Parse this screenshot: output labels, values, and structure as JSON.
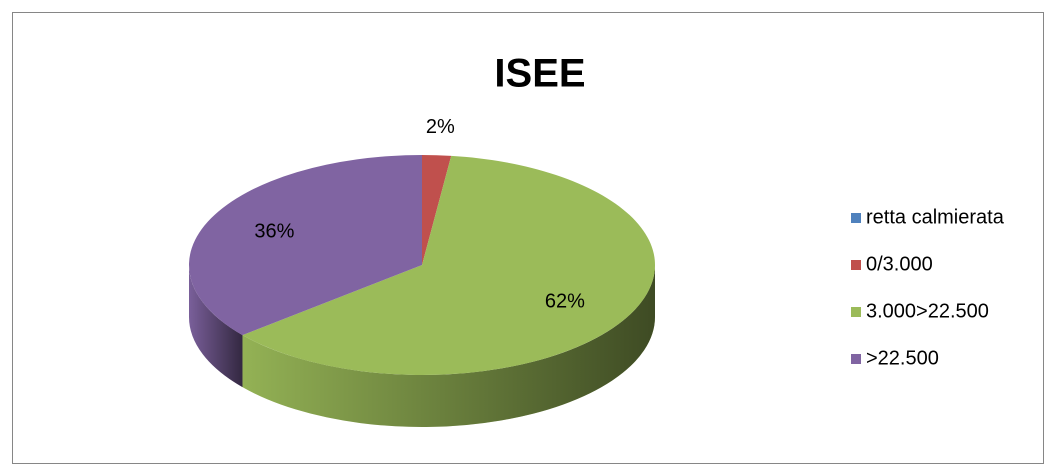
{
  "chart_data": {
    "type": "pie3d",
    "title": "ISEE",
    "categories": [
      "retta calmierata",
      "0/3.000",
      "3.000>22.500",
      ">22.500"
    ],
    "values": [
      0,
      2,
      62,
      36
    ],
    "value_labels": [
      null,
      "2%",
      "62%",
      "36%"
    ],
    "colors": [
      "#4f81bd",
      "#c0504d",
      "#9bbb59",
      "#8064a2"
    ],
    "legend": "right"
  }
}
